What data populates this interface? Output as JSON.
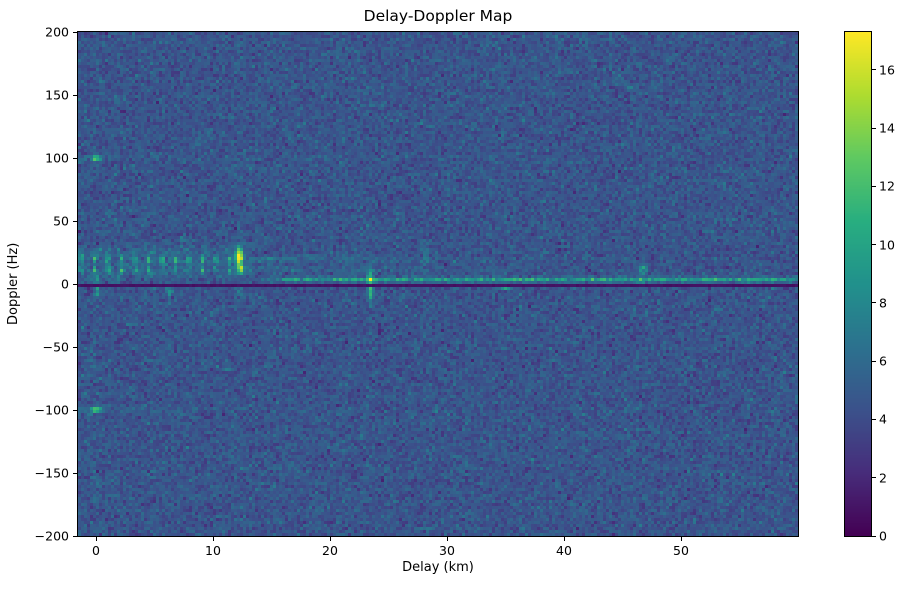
{
  "style": {
    "background": "#ffffff",
    "text_color": "#000000",
    "spine_color": "#000000"
  },
  "chart_data": {
    "type": "heatmap",
    "title": "Delay-Doppler Map",
    "xlabel": "Delay (km)",
    "ylabel": "Doppler (Hz)",
    "x_range": [
      -1.54,
      60.0
    ],
    "y_range": [
      -200,
      200
    ],
    "x_ticks": [
      {
        "value": 0,
        "label": "0"
      },
      {
        "value": 10,
        "label": "10"
      },
      {
        "value": 20,
        "label": "20"
      },
      {
        "value": 30,
        "label": "30"
      },
      {
        "value": 40,
        "label": "40"
      },
      {
        "value": 50,
        "label": "50"
      }
    ],
    "y_ticks": [
      {
        "value": 200,
        "label": "200"
      },
      {
        "value": 150,
        "label": "150"
      },
      {
        "value": 100,
        "label": "100"
      },
      {
        "value": 50,
        "label": "50"
      },
      {
        "value": 0,
        "label": "0"
      },
      {
        "value": -50,
        "label": "−50"
      },
      {
        "value": -100,
        "label": "−100"
      },
      {
        "value": -150,
        "label": "−150"
      },
      {
        "value": -200,
        "label": "−200"
      }
    ],
    "colorbar": {
      "vmin": 0,
      "vmax": 17.3,
      "ticks": [
        {
          "value": 0,
          "label": "0"
        },
        {
          "value": 2,
          "label": "2"
        },
        {
          "value": 4,
          "label": "4"
        },
        {
          "value": 6,
          "label": "6"
        },
        {
          "value": 8,
          "label": "8"
        },
        {
          "value": 10,
          "label": "10"
        },
        {
          "value": 12,
          "label": "12"
        },
        {
          "value": 14,
          "label": "14"
        },
        {
          "value": 16,
          "label": "16"
        }
      ]
    },
    "colormap": {
      "name": "viridis",
      "stops": [
        [
          0.0,
          "#440154"
        ],
        [
          0.125,
          "#472d7b"
        ],
        [
          0.25,
          "#3b528b"
        ],
        [
          0.375,
          "#2c728e"
        ],
        [
          0.5,
          "#21918c"
        ],
        [
          0.625,
          "#28ae80"
        ],
        [
          0.75,
          "#5ec962"
        ],
        [
          0.875,
          "#addc30"
        ],
        [
          1.0,
          "#fde725"
        ]
      ]
    },
    "grid": {
      "cols": 240,
      "rows": 168
    },
    "noise": {
      "seed": 42,
      "mean": 4.55,
      "std": 0.85,
      "min": 1.6,
      "max": 8.6
    },
    "features": {
      "zero_doppler_line": {
        "doppler": 0,
        "value": 0.8
      },
      "band_glow": {
        "x0": -1.54,
        "x1": 13.2,
        "doppler": 16,
        "sigma_hz": 8,
        "amp": 1.0
      },
      "dash_combs": [
        {
          "x0": -1.54,
          "x1": 12.55,
          "doppler": 19.5,
          "sigma_hz": 2.4,
          "period_km": 1.15,
          "amp": 5.2
        },
        {
          "x0": -1.54,
          "x1": 12.55,
          "doppler": 11.0,
          "sigma_hz": 2.1,
          "period_km": 1.15,
          "amp": 4.2
        },
        {
          "x0": -1.54,
          "x1": 12.55,
          "doppler": 26.0,
          "sigma_hz": 2.4,
          "period_km": 1.5,
          "amp": 1.7
        }
      ],
      "h_lines": [
        {
          "doppler": 3.5,
          "x0": 13.0,
          "x1": 60.0,
          "amp": 4.8,
          "sigma_hz": 1.3,
          "ramp_km": 5
        },
        {
          "doppler": 19.5,
          "x0": 12.6,
          "x1": 60.0,
          "amp": 1.7,
          "sigma_hz": 1.8,
          "decay_km": 12
        },
        {
          "doppler": 11.0,
          "x0": 12.6,
          "x1": 60.0,
          "amp": 1.5,
          "sigma_hz": 1.8,
          "decay_km": 12
        },
        {
          "doppler": 100.0,
          "x0": -1.54,
          "x1": 38.0,
          "amp": 0.85,
          "sigma_hz": 1.3,
          "decay_km": 25
        },
        {
          "doppler": -100.0,
          "x0": -1.54,
          "x1": 38.0,
          "amp": 0.85,
          "sigma_hz": 1.3,
          "decay_km": 25
        }
      ],
      "blobs": [
        {
          "x": 12.2,
          "y": 21,
          "amp": 12.8,
          "sx": 0.22,
          "sy": 3.6
        },
        {
          "x": 12.3,
          "y": 12,
          "amp": 9.0,
          "sx": 0.22,
          "sy": 2.8
        },
        {
          "x": 12.2,
          "y": 28,
          "amp": 3.5,
          "sx": 0.3,
          "sy": 3.0
        },
        {
          "x": 12.3,
          "y": -7,
          "amp": 2.5,
          "sx": 0.2,
          "sy": 4.0
        },
        {
          "x": 23.45,
          "y": 3,
          "amp": 6.5,
          "sx": 0.17,
          "sy": 8.0
        },
        {
          "x": 23.45,
          "y": -9,
          "amp": 3.0,
          "sx": 0.17,
          "sy": 5.0
        },
        {
          "x": 0.0,
          "y": 100,
          "amp": 7.5,
          "sx": 0.3,
          "sy": 1.7
        },
        {
          "x": 0.0,
          "y": -100,
          "amp": 7.5,
          "sx": 0.3,
          "sy": 1.7
        },
        {
          "x": 0.15,
          "y": -6,
          "amp": 5.0,
          "sx": 0.18,
          "sy": 4.5
        },
        {
          "x": 6.3,
          "y": -7,
          "amp": 3.8,
          "sx": 0.18,
          "sy": 4.0
        },
        {
          "x": 0.1,
          "y": 4.5,
          "amp": 4.5,
          "sx": 0.25,
          "sy": 2.0
        },
        {
          "x": 1.8,
          "y": 4.5,
          "amp": 3.2,
          "sx": 0.2,
          "sy": 2.0
        },
        {
          "x": 35.0,
          "y": -2.5,
          "amp": 7.0,
          "sx": 0.28,
          "sy": 1.6
        },
        {
          "x": 46.8,
          "y": 13,
          "amp": 5.5,
          "sx": 0.25,
          "sy": 1.7
        },
        {
          "x": 28.2,
          "y": 22,
          "amp": 2.2,
          "sx": 0.22,
          "sy": 4.0
        },
        {
          "x": 46.6,
          "y": 4,
          "amp": 2.2,
          "sx": 0.25,
          "sy": 5.0
        }
      ]
    }
  }
}
